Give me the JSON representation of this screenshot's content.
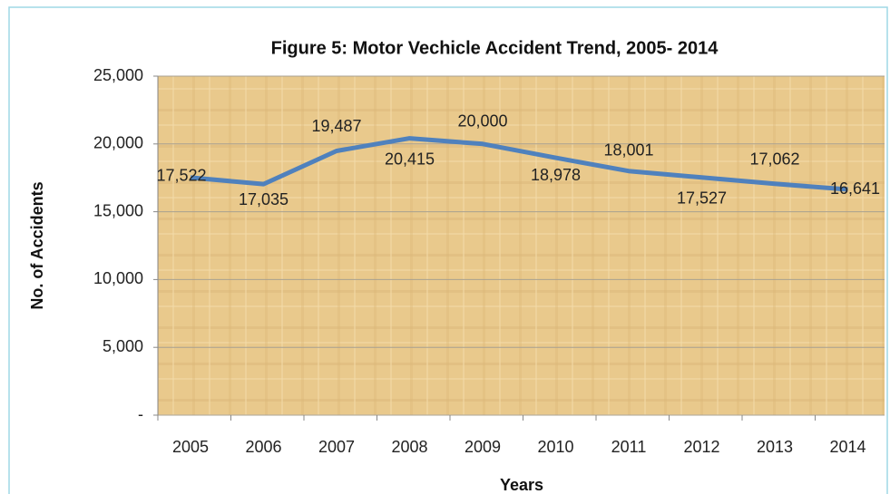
{
  "chart_data": {
    "type": "line",
    "title": "Figure 5: Motor Vechicle Accident Trend, 2005- 2014",
    "y_label": "No. of Accidents",
    "x_label": "Years",
    "categories": [
      "2005",
      "2006",
      "2007",
      "2008",
      "2009",
      "2010",
      "2011",
      "2012",
      "2013",
      "2014"
    ],
    "series": [
      {
        "name": "Accidents",
        "color": "#4f81bd",
        "values": [
          17522,
          17035,
          19487,
          20415,
          20000,
          18978,
          18001,
          17527,
          17062,
          16641
        ],
        "value_labels": [
          "17,522",
          "17,035",
          "19,487",
          "20,415",
          "20,000",
          "18,978",
          "18,001",
          "17,527",
          "17,062",
          "16,641"
        ]
      }
    ],
    "ylim": [
      0,
      25000
    ],
    "yticks": [
      {
        "value": 0,
        "label": "-"
      },
      {
        "value": 5000,
        "label": "5,000"
      },
      {
        "value": 10000,
        "label": "10,000"
      },
      {
        "value": 15000,
        "label": "15,000"
      },
      {
        "value": 20000,
        "label": "20,000"
      },
      {
        "value": 25000,
        "label": "25,000"
      }
    ],
    "grid": true
  }
}
